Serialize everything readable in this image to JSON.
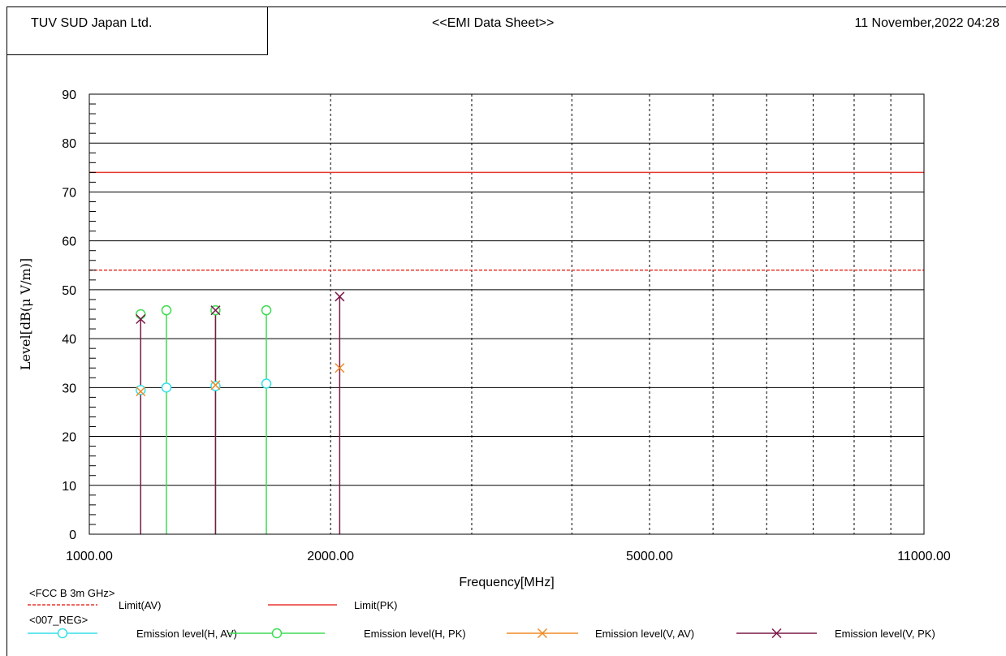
{
  "header": {
    "company": "TUV SUD Japan Ltd.",
    "sheet_title": "<<EMI Data Sheet>>",
    "timestamp": "11 November,2022 04:28"
  },
  "chart_data": {
    "type": "scatter",
    "xlabel": "Frequency[MHz]",
    "ylabel": "Level[dB(μ V/m)]",
    "xscale": "log",
    "xlim": [
      1000,
      11000
    ],
    "ylim": [
      0,
      90
    ],
    "x_tick_labels": [
      "1000.00",
      "2000.00",
      "5000.00",
      "11000.00"
    ],
    "x_ticks": [
      1000,
      2000,
      5000,
      11000
    ],
    "y_ticks": [
      0,
      10,
      20,
      30,
      40,
      50,
      60,
      70,
      80,
      90
    ],
    "x_minor_gridlines": [
      3000,
      4000,
      6000,
      7000,
      8000,
      9000,
      10000
    ],
    "grid": true,
    "limits": [
      {
        "name": "Limit(AV)",
        "value": 54,
        "color": "#e8372e",
        "style": "dashed"
      },
      {
        "name": "Limit(PK)",
        "value": 74,
        "color": "#e8372e",
        "style": "solid"
      }
    ],
    "series": [
      {
        "name": "Emission level(H, AV)",
        "color": "#36e0ea",
        "marker": "circle",
        "x": [
          1159,
          1248,
          1437,
          1663
        ],
        "values": [
          29.5,
          30.0,
          30.3,
          30.8
        ]
      },
      {
        "name": "Emission level(H, PK)",
        "color": "#3ddc52",
        "marker": "circle",
        "x": [
          1159,
          1248,
          1437,
          1663
        ],
        "values": [
          45.0,
          45.8,
          45.8,
          45.8
        ]
      },
      {
        "name": "Emission level(V, AV)",
        "color": "#f08a24",
        "marker": "x",
        "x": [
          1159,
          1437,
          2053
        ],
        "values": [
          29.2,
          30.5,
          34.0
        ]
      },
      {
        "name": "Emission level(V, PK)",
        "color": "#7b1848",
        "marker": "x",
        "x": [
          1159,
          1437,
          2053
        ],
        "values": [
          44.0,
          45.8,
          48.6
        ]
      }
    ]
  },
  "legend": {
    "group1_label": "<FCC B 3m GHz>",
    "group2_label": "<007_REG>"
  }
}
